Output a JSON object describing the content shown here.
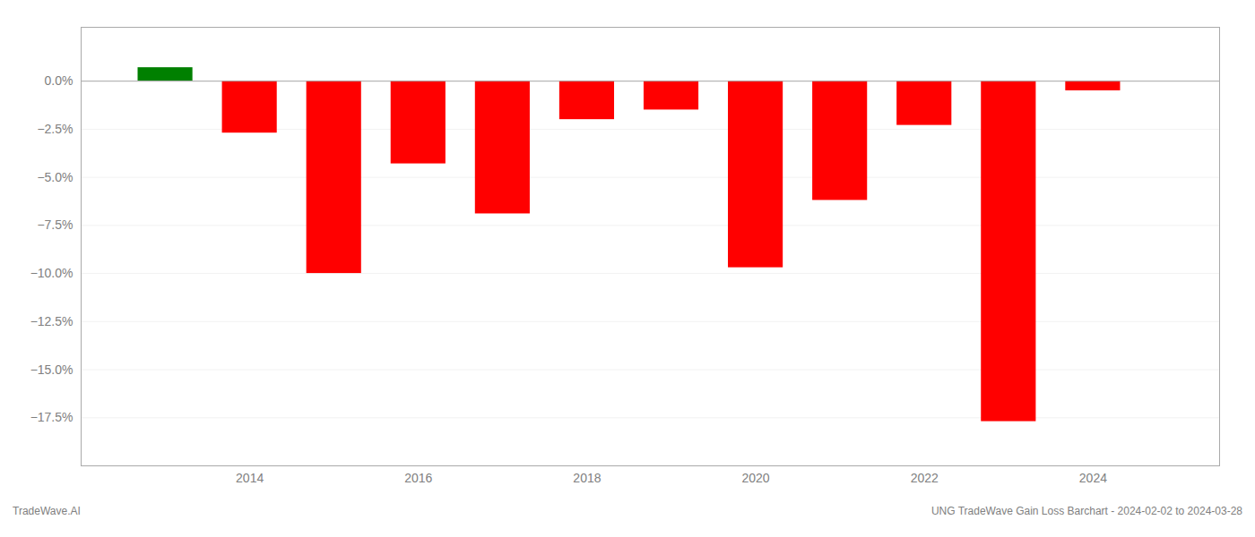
{
  "chart_data": {
    "type": "bar",
    "x": [
      2013,
      2014,
      2015,
      2016,
      2017,
      2018,
      2019,
      2020,
      2021,
      2022,
      2023,
      2024
    ],
    "values": [
      0.007,
      -0.027,
      -0.1,
      -0.043,
      -0.069,
      -0.02,
      -0.015,
      -0.097,
      -0.062,
      -0.023,
      -0.177,
      -0.005
    ],
    "colors": [
      "#008000",
      "#ff0000",
      "#ff0000",
      "#ff0000",
      "#ff0000",
      "#ff0000",
      "#ff0000",
      "#ff0000",
      "#ff0000",
      "#ff0000",
      "#ff0000",
      "#ff0000"
    ],
    "xlim": [
      2012.0,
      2025.5
    ],
    "xticks": [
      2014,
      2016,
      2018,
      2020,
      2022,
      2024
    ],
    "ylim": [
      -0.2,
      0.028
    ],
    "yticks": [
      {
        "value": 0.0,
        "label": "0.0%"
      },
      {
        "value": -0.025,
        "label": "−2.5%"
      },
      {
        "value": -0.05,
        "label": "−5.0%"
      },
      {
        "value": -0.075,
        "label": "−7.5%"
      },
      {
        "value": -0.1,
        "label": "−10.0%"
      },
      {
        "value": -0.125,
        "label": "−12.5%"
      },
      {
        "value": -0.15,
        "label": "−15.0%"
      },
      {
        "value": -0.175,
        "label": "−17.5%"
      }
    ],
    "grid": true,
    "annotations": [
      "TradeWave.AI",
      "UNG TradeWave Gain Loss Barchart - 2024-02-02 to 2024-03-28"
    ]
  }
}
